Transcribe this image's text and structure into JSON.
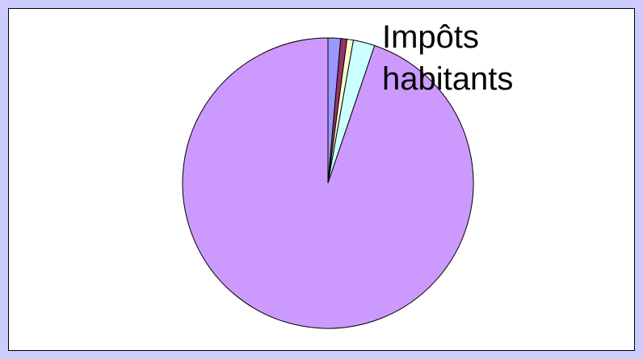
{
  "chart_data": {
    "type": "pie",
    "categories": [
      null,
      null,
      null,
      "Impôts habitants",
      null
    ],
    "values": [
      1.4,
      0.7,
      0.7,
      2.4,
      94.8
    ],
    "colors": [
      "#9999ff",
      "#993366",
      "#ffffcc",
      "#ccffff",
      "#cc99ff"
    ],
    "start_angle": 90,
    "direction": "clockwise"
  }
}
